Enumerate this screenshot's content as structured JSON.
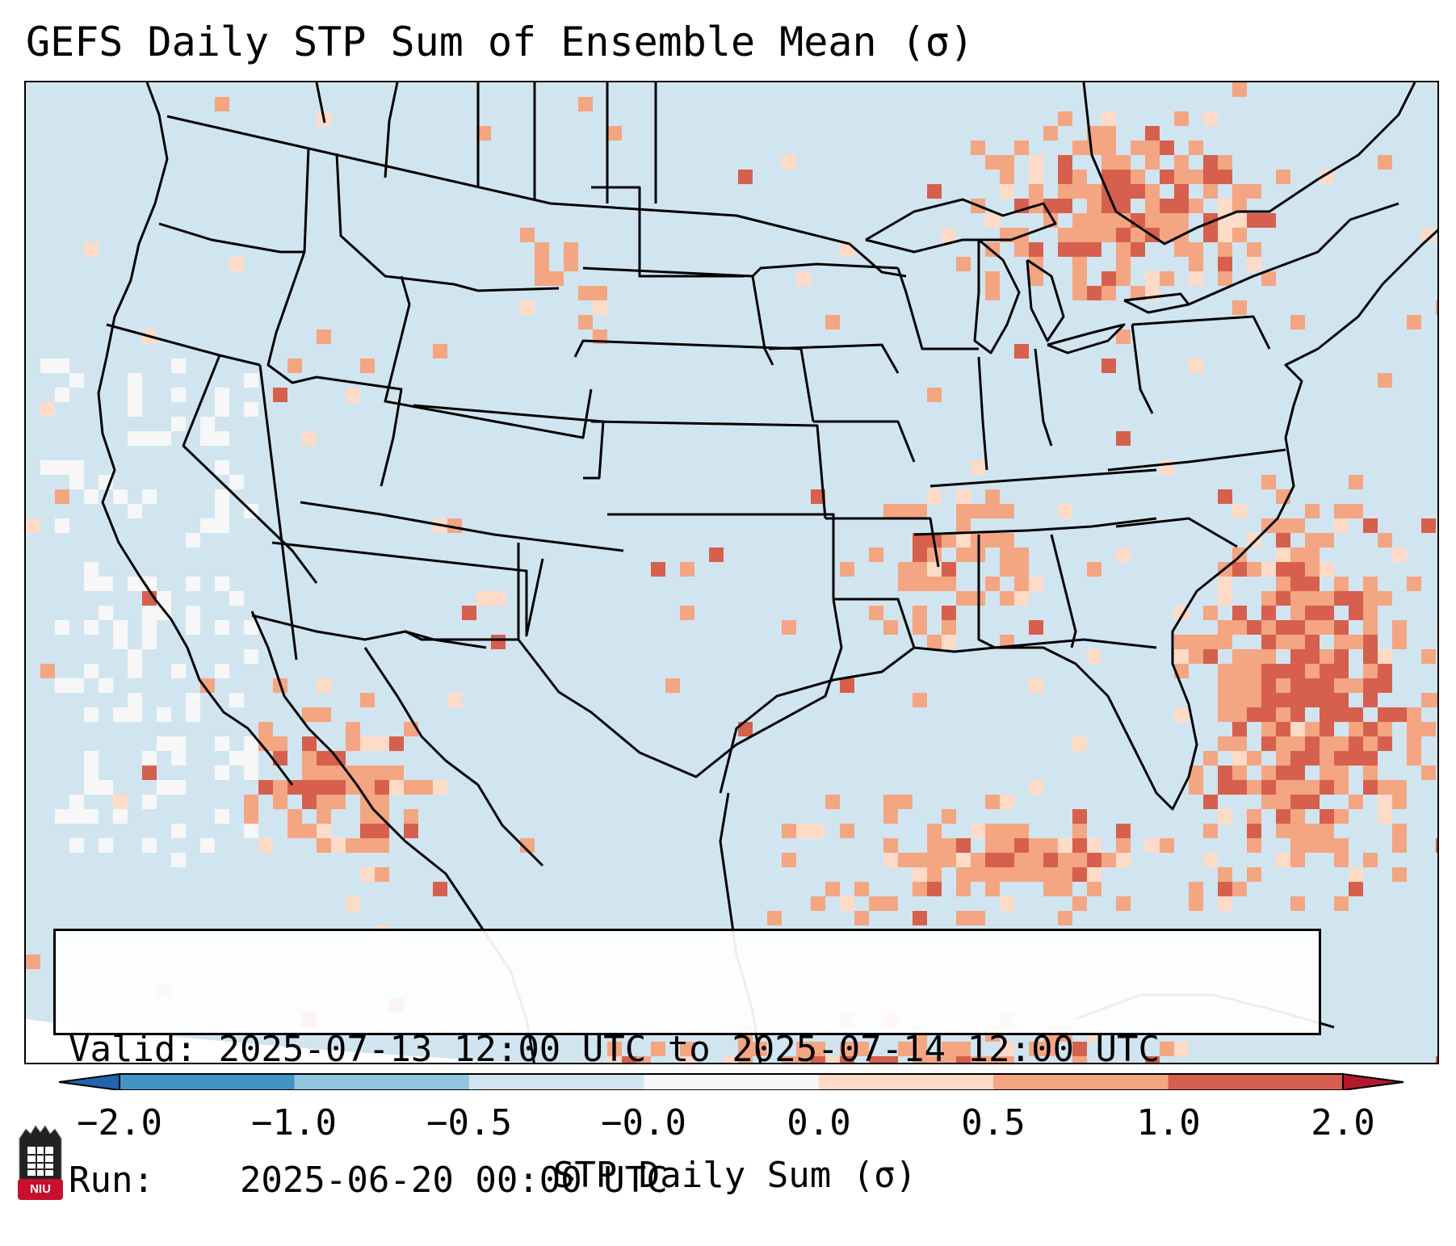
{
  "title": "GEFS Daily STP Sum of Ensemble Mean (σ)",
  "info": {
    "valid_label": "Valid:",
    "valid_value": "2025-07-13 12:00 UTC to 2025-07-14 12:00 UTC",
    "run_label": "Run:",
    "run_value": "2025-06-20 00:00 UTC"
  },
  "colorbar": {
    "label": "STP Daily Sum (σ)",
    "ticks": [
      "−2.0",
      "−1.0",
      "−0.5",
      "−0.0",
      "0.0",
      "0.5",
      "1.0",
      "2.0"
    ],
    "bins": [
      {
        "from": "−2.0",
        "to": "−1.0",
        "color": "#4393c3"
      },
      {
        "from": "−1.0",
        "to": "−0.5",
        "color": "#92c5de"
      },
      {
        "from": "−0.5",
        "to": "−0.0",
        "color": "#d1e5f0"
      },
      {
        "from": "−0.0",
        "to": "0.0",
        "color": "#f7f7f7"
      },
      {
        "from": "0.0",
        "to": "0.5",
        "color": "#fddbc7"
      },
      {
        "from": "0.5",
        "to": "1.0",
        "color": "#f4a582"
      },
      {
        "from": "1.0",
        "to": "2.0",
        "color": "#d6604d"
      }
    ],
    "under_color": "#2166ac",
    "over_color": "#b2182b"
  },
  "map": {
    "background_color": "#d1e5f0",
    "boundaries_color": "#000000"
  },
  "logo": {
    "text": "NIU",
    "color": "#c8102e"
  }
}
